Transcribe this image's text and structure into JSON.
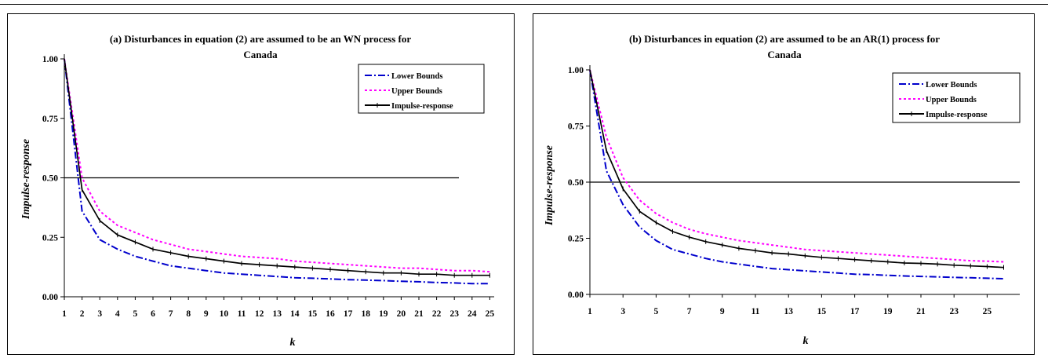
{
  "header_fragment": "",
  "colors": {
    "lower": "#0000cc",
    "upper": "#ff00ff",
    "impulse": "#000000"
  },
  "chart_data": [
    {
      "type": "line",
      "id": "a",
      "title_line1": "(a) Disturbances in equation (2) are assumed to be an WN process for",
      "title_line2": "Canada",
      "xlabel": "k",
      "ylabel": "Impulse-response",
      "ylim": [
        0,
        1
      ],
      "yticks": [
        "0.00",
        "0.25",
        "0.50",
        "0.75",
        "1.00"
      ],
      "x_tick_labels": [
        "1",
        "2",
        "3",
        "4",
        "5",
        "6",
        "7",
        "8",
        "9",
        "10",
        "11",
        "12",
        "13",
        "14",
        "15",
        "16",
        "17",
        "18",
        "19",
        "20",
        "21",
        "22",
        "23",
        "24",
        "25"
      ],
      "x": [
        1,
        2,
        3,
        4,
        5,
        6,
        7,
        8,
        9,
        10,
        11,
        12,
        13,
        14,
        15,
        16,
        17,
        18,
        19,
        20,
        21,
        22,
        23,
        24,
        25
      ],
      "reference_line": 0.5,
      "legend": [
        "Lower Bounds",
        "Upper Bounds",
        "Impulse-response"
      ],
      "legend_position": "top-right",
      "series": [
        {
          "name": "Lower Bounds",
          "values": [
            1.0,
            0.36,
            0.24,
            0.2,
            0.17,
            0.15,
            0.13,
            0.12,
            0.11,
            0.1,
            0.095,
            0.09,
            0.085,
            0.08,
            0.078,
            0.075,
            0.072,
            0.07,
            0.068,
            0.065,
            0.063,
            0.06,
            0.058,
            0.055,
            0.055
          ]
        },
        {
          "name": "Upper Bounds",
          "values": [
            1.0,
            0.5,
            0.36,
            0.3,
            0.27,
            0.24,
            0.22,
            0.2,
            0.19,
            0.18,
            0.17,
            0.165,
            0.16,
            0.15,
            0.145,
            0.14,
            0.135,
            0.13,
            0.125,
            0.12,
            0.12,
            0.115,
            0.11,
            0.11,
            0.105
          ]
        },
        {
          "name": "Impulse-response",
          "values": [
            1.0,
            0.45,
            0.32,
            0.26,
            0.23,
            0.2,
            0.185,
            0.17,
            0.16,
            0.15,
            0.14,
            0.135,
            0.13,
            0.125,
            0.12,
            0.115,
            0.11,
            0.105,
            0.1,
            0.1,
            0.095,
            0.095,
            0.09,
            0.09,
            0.09
          ]
        }
      ]
    },
    {
      "type": "line",
      "id": "b",
      "title_line1": "(b) Disturbances in equation (2) are assumed to be an AR(1) process for",
      "title_line2": "Canada",
      "xlabel": "k",
      "ylabel": "Impulse-response",
      "ylim": [
        0,
        1
      ],
      "yticks": [
        "0.00",
        "0.25",
        "0.50",
        "0.75",
        "1.00"
      ],
      "x_tick_labels": [
        "1",
        "3",
        "5",
        "7",
        "9",
        "11",
        "13",
        "15",
        "17",
        "19",
        "21",
        "23",
        "25"
      ],
      "x": [
        1,
        2,
        3,
        4,
        5,
        6,
        7,
        8,
        9,
        10,
        11,
        12,
        13,
        14,
        15,
        16,
        17,
        18,
        19,
        20,
        21,
        22,
        23,
        24,
        25,
        26
      ],
      "reference_line": 0.5,
      "legend": [
        "Lower Bounds",
        "Upper Bounds",
        "Impulse-response"
      ],
      "legend_position": "top-right",
      "series": [
        {
          "name": "Lower Bounds",
          "values": [
            1.0,
            0.55,
            0.4,
            0.3,
            0.24,
            0.2,
            0.18,
            0.16,
            0.145,
            0.135,
            0.125,
            0.115,
            0.11,
            0.105,
            0.1,
            0.095,
            0.09,
            0.088,
            0.085,
            0.082,
            0.08,
            0.078,
            0.076,
            0.074,
            0.072,
            0.07
          ]
        },
        {
          "name": "Upper Bounds",
          "values": [
            1.0,
            0.7,
            0.52,
            0.42,
            0.36,
            0.32,
            0.29,
            0.27,
            0.255,
            0.24,
            0.23,
            0.22,
            0.21,
            0.2,
            0.195,
            0.19,
            0.185,
            0.18,
            0.175,
            0.17,
            0.165,
            0.16,
            0.155,
            0.15,
            0.148,
            0.145
          ]
        },
        {
          "name": "Impulse-response",
          "values": [
            1.0,
            0.64,
            0.47,
            0.37,
            0.32,
            0.28,
            0.255,
            0.235,
            0.22,
            0.205,
            0.195,
            0.185,
            0.18,
            0.172,
            0.165,
            0.16,
            0.155,
            0.15,
            0.145,
            0.14,
            0.138,
            0.135,
            0.13,
            0.127,
            0.124,
            0.12
          ]
        }
      ]
    }
  ]
}
